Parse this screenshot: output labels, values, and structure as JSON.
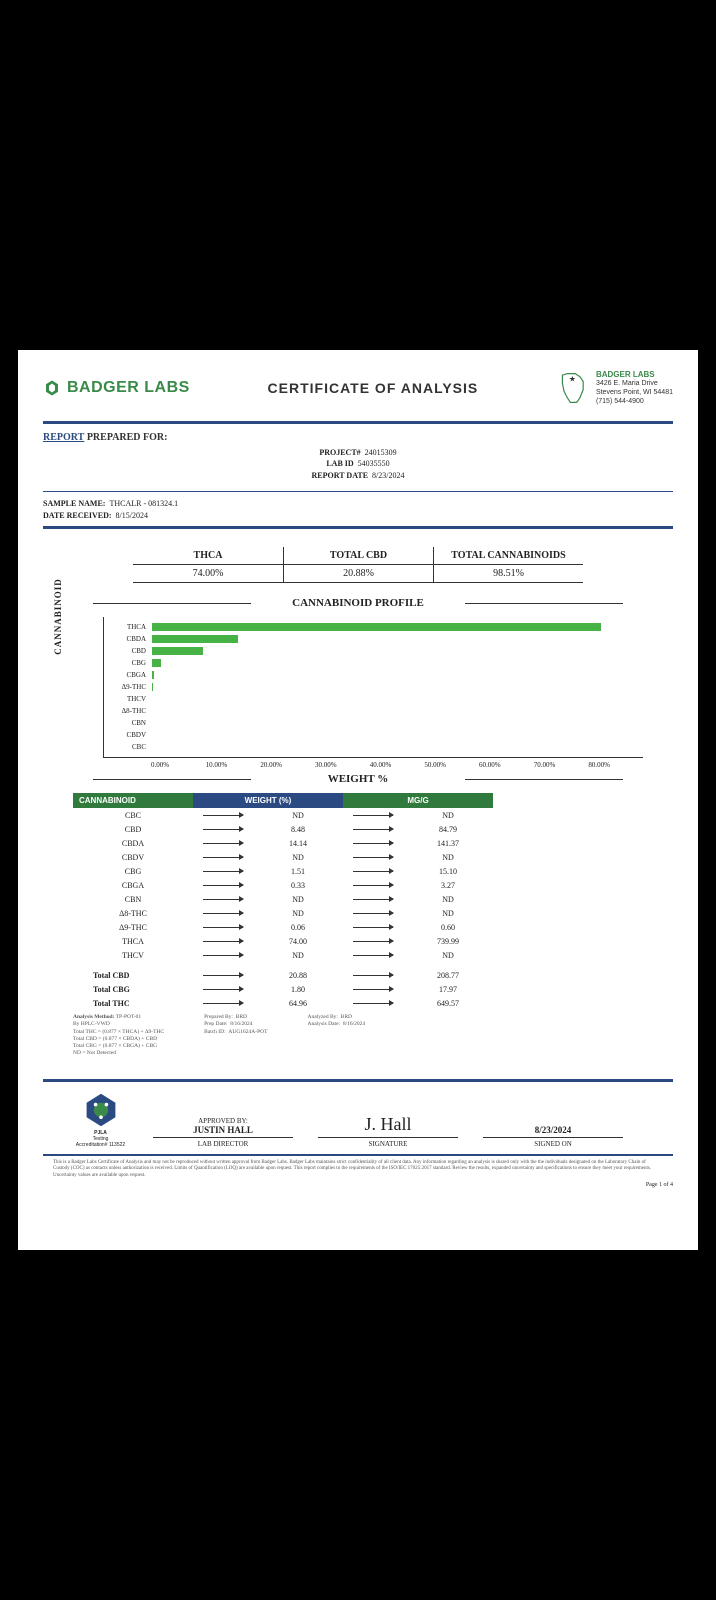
{
  "company": {
    "name": "BADGER LABS",
    "addr_name": "BADGER LABS",
    "addr_line1": "3426 E. Maria Drive",
    "addr_line2": "Stevens Point, WI 54481",
    "addr_phone": "(715) 544-4900"
  },
  "title": "CERTIFICATE OF ANALYSIS",
  "report": {
    "heading_u": "REPORT",
    "heading_b": "PREPARED FOR:",
    "project_k": "PROJECT#",
    "project_v": "24015309",
    "labid_k": "LAB ID",
    "labid_v": "54035550",
    "date_k": "REPORT DATE",
    "date_v": "8/23/2024"
  },
  "sample": {
    "name_k": "SAMPLE NAME:",
    "name_v": "THCALR - 081324.1",
    "recv_k": "DATE RECEIVED:",
    "recv_v": "8/15/2024"
  },
  "summary": [
    {
      "k": "THCA",
      "v": "74.00%"
    },
    {
      "k": "TOTAL CBD",
      "v": "20.88%"
    },
    {
      "k": "TOTAL CANNABINOIDS",
      "v": "98.51%"
    }
  ],
  "chart": {
    "title": "CANNABINOID PROFILE",
    "ylabel": "CANNABINOID",
    "x_title": "WEIGHT %",
    "x_max": 80,
    "x_ticks": [
      "0.00%",
      "10.00%",
      "20.00%",
      "30.00%",
      "40.00%",
      "50.00%",
      "60.00%",
      "70.00%",
      "80.00%"
    ],
    "bars": [
      {
        "label": "THCA",
        "value": 74.0
      },
      {
        "label": "CBDA",
        "value": 14.14
      },
      {
        "label": "CBD",
        "value": 8.48
      },
      {
        "label": "CBG",
        "value": 1.51
      },
      {
        "label": "CBGA",
        "value": 0.33
      },
      {
        "label": "Δ9-THC",
        "value": 0.06
      },
      {
        "label": "THCV",
        "value": 0
      },
      {
        "label": "Δ8-THC",
        "value": 0
      },
      {
        "label": "CBN",
        "value": 0
      },
      {
        "label": "CBDV",
        "value": 0
      },
      {
        "label": "CBC",
        "value": 0
      }
    ],
    "bar_color": "#47b245"
  },
  "table": {
    "headers": [
      "CANNABINOID",
      "WEIGHT (%)",
      "MG/G"
    ],
    "rows": [
      {
        "name": "CBC",
        "w": "ND",
        "mg": "ND"
      },
      {
        "name": "CBD",
        "w": "8.48",
        "mg": "84.79"
      },
      {
        "name": "CBDA",
        "w": "14.14",
        "mg": "141.37"
      },
      {
        "name": "CBDV",
        "w": "ND",
        "mg": "ND"
      },
      {
        "name": "CBG",
        "w": "1.51",
        "mg": "15.10"
      },
      {
        "name": "CBGA",
        "w": "0.33",
        "mg": "3.27"
      },
      {
        "name": "CBN",
        "w": "ND",
        "mg": "ND"
      },
      {
        "name": "Δ8-THC",
        "w": "ND",
        "mg": "ND"
      },
      {
        "name": "Δ9-THC",
        "w": "0.06",
        "mg": "0.60"
      },
      {
        "name": "THCA",
        "w": "74.00",
        "mg": "739.99"
      },
      {
        "name": "THCV",
        "w": "ND",
        "mg": "ND"
      }
    ],
    "totals": [
      {
        "name": "Total CBD",
        "w": "20.88",
        "mg": "208.77"
      },
      {
        "name": "Total CBG",
        "w": "1.80",
        "mg": "17.97"
      },
      {
        "name": "Total THC",
        "w": "64.96",
        "mg": "649.57"
      }
    ]
  },
  "meta": {
    "method_k": "Analysis Method:",
    "method_v": "TP-POT-01",
    "inst": "By HPLC-VWD",
    "f1": "Total THC = (0.877 × THCA) + Δ9-THC",
    "f2": "Total CBD = (0.877 × CBDA) + CBD",
    "f3": "Total CBG = (0.877 × CBGA) + CBG",
    "nd": "ND = Not Detected",
    "prep_k": "Prepared By:",
    "prep_v": "BRD",
    "pdate_k": "Prep Date:",
    "pdate_v": "8/16/2024",
    "batch_k": "Batch ID:",
    "batch_v": "AUG1624A-POT",
    "anby_k": "Analyzed By:",
    "anby_v": "BRD",
    "andt_k": "Analysis Date:",
    "andt_v": "8/16/2024"
  },
  "approval": {
    "approved_k": "APPROVED BY:",
    "name": "JUSTIN HALL",
    "title": "LAB DIRECTOR",
    "sig": "J. Hall",
    "sig_k": "SIGNATURE",
    "date": "8/23/2024",
    "date_k": "SIGNED ON",
    "pjla": "PJLA",
    "pjla2": "Testing",
    "accred": "Accreditation# 113522"
  },
  "page": "Page 1 of 4",
  "disclaimer": "This is a Badger Labs Certificate of Analysis and may not be reproduced without written approval from Badger Labs. Badger Labs maintains strict confidentiality of all client data. Any information regarding an analysis is shared only with the the individuals designated on the Laboratory Chain of Custody (COC) as contacts unless authorization is received. Limits of Quantification (LOQ) are available upon request. This report complies to the requirements of the ISO/IEC 17025:2017 standard. Review the results, expanded uncertainty and specifications to ensure they meet your requirements. Uncertainty values are available upon request."
}
